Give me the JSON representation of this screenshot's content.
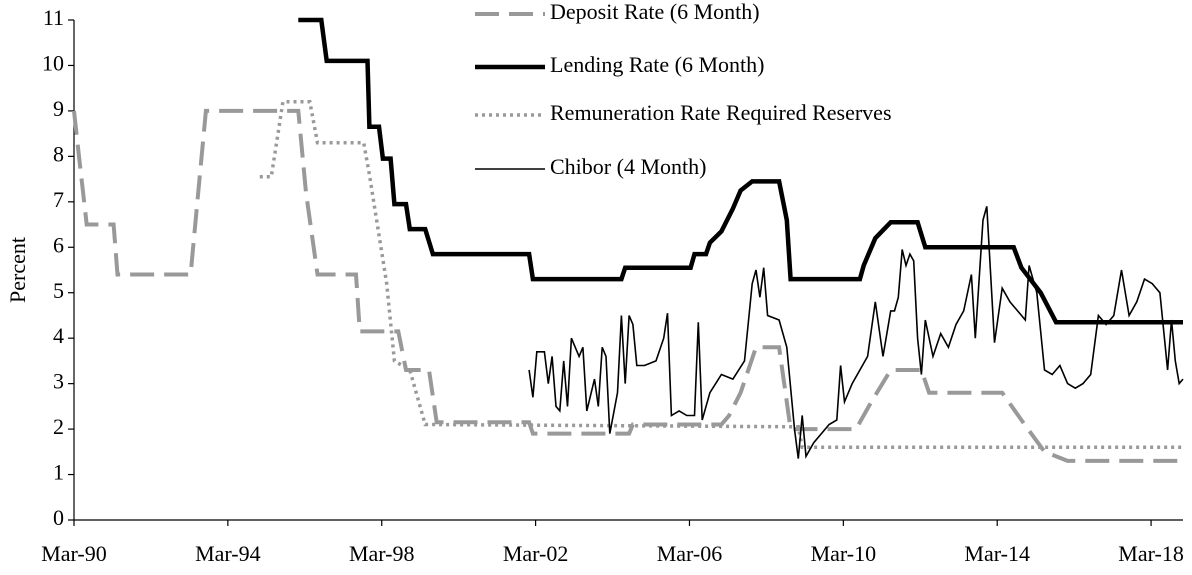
{
  "chart_data": {
    "type": "line",
    "ylabel": "Percent",
    "xlim": [
      1990.17,
      2019.0
    ],
    "xticks": [
      {
        "value": 1990.17,
        "label": "Mar-90"
      },
      {
        "value": 1994.17,
        "label": "Mar-94"
      },
      {
        "value": 1998.17,
        "label": "Mar-98"
      },
      {
        "value": 2002.17,
        "label": "Mar-02"
      },
      {
        "value": 2006.17,
        "label": "Mar-06"
      },
      {
        "value": 2010.17,
        "label": "Mar-10"
      },
      {
        "value": 2014.17,
        "label": "Mar-14"
      },
      {
        "value": 2018.17,
        "label": "Mar-18"
      }
    ],
    "ylim": [
      0,
      11
    ],
    "yticks": [
      0,
      1,
      2,
      3,
      4,
      5,
      6,
      7,
      8,
      9,
      10,
      11
    ],
    "grid": false,
    "legend": "top-center",
    "series": [
      {
        "name": "Deposit Rate (6 Month)",
        "color": "#999999",
        "line_style": "dashed",
        "linewidth": 4,
        "x": [
          1990.17,
          1990.3,
          1990.5,
          1991.2,
          1991.3,
          1993.2,
          1993.4,
          1993.6,
          1996.0,
          1996.2,
          1996.5,
          1997.5,
          1997.6,
          1998.6,
          1998.8,
          1999.4,
          1999.6,
          2002.0,
          2002.1,
          2004.6,
          2004.7,
          2007.0,
          2007.2,
          2007.5,
          2007.9,
          2008.5,
          2008.8,
          2010.5,
          2010.9,
          2011.4,
          2012.2,
          2012.4,
          2014.3,
          2014.8,
          2015.4,
          2016.0,
          2019.0
        ],
        "values": [
          9,
          8,
          6.5,
          6.5,
          5.4,
          5.4,
          7.2,
          9,
          9,
          7.2,
          5.4,
          5.4,
          4.15,
          4.15,
          3.3,
          3.3,
          2.15,
          2.15,
          1.9,
          1.9,
          2.1,
          2.1,
          2.3,
          2.8,
          3.8,
          3.8,
          2.0,
          2.0,
          2.6,
          3.3,
          3.3,
          2.8,
          2.8,
          2.2,
          1.5,
          1.3,
          1.3
        ]
      },
      {
        "name": "Lending Rate (6 Month)",
        "color": "#000000",
        "line_style": "solid",
        "linewidth": 4.5,
        "x": [
          1996.0,
          1996.6,
          1996.74,
          1997.8,
          1997.85,
          1998.1,
          1998.2,
          1998.4,
          1998.5,
          1998.8,
          1998.9,
          1999.3,
          1999.5,
          2002.0,
          2002.1,
          2004.4,
          2004.5,
          2006.2,
          2006.3,
          2006.6,
          2006.7,
          2007.0,
          2007.3,
          2007.5,
          2007.8,
          2008.5,
          2008.7,
          2008.8,
          2010.6,
          2010.7,
          2011.0,
          2011.4,
          2012.1,
          2012.3,
          2014.6,
          2014.8,
          2015.3,
          2015.7,
          2019.0
        ],
        "values": [
          11,
          11,
          10.1,
          10.1,
          8.65,
          8.65,
          7.95,
          7.95,
          6.95,
          6.95,
          6.4,
          6.4,
          5.85,
          5.85,
          5.3,
          5.3,
          5.55,
          5.55,
          5.85,
          5.85,
          6.1,
          6.35,
          6.85,
          7.25,
          7.45,
          7.45,
          6.6,
          5.3,
          5.3,
          5.6,
          6.2,
          6.55,
          6.55,
          6.0,
          6.0,
          5.55,
          5.0,
          4.35,
          4.35
        ]
      },
      {
        "name": "Remuneration Rate Required Reserves",
        "color": "#999999",
        "line_style": "dotted",
        "linewidth": 3.5,
        "x": [
          1995.0,
          1995.3,
          1995.6,
          1996.3,
          1996.5,
          1997.7,
          1997.85,
          1998.3,
          1998.5,
          1998.9,
          1999.3,
          2009.0,
          2009.1,
          2019.0
        ],
        "values": [
          7.55,
          7.55,
          9.2,
          9.2,
          8.3,
          8.3,
          7.6,
          5.2,
          3.5,
          3.3,
          2.1,
          2.05,
          1.6,
          1.6
        ]
      },
      {
        "name": "Chibor (4 Month)",
        "color": "#000000",
        "line_style": "solid",
        "linewidth": 1.6,
        "x": [
          2002.0,
          2002.1,
          2002.2,
          2002.4,
          2002.5,
          2002.6,
          2002.7,
          2002.8,
          2002.9,
          2003.0,
          2003.1,
          2003.3,
          2003.4,
          2003.5,
          2003.7,
          2003.8,
          2003.9,
          2004.0,
          2004.1,
          2004.3,
          2004.4,
          2004.5,
          2004.6,
          2004.7,
          2004.8,
          2005.0,
          2005.3,
          2005.5,
          2005.6,
          2005.7,
          2005.9,
          2006.1,
          2006.3,
          2006.4,
          2006.5,
          2006.7,
          2007.0,
          2007.3,
          2007.6,
          2007.8,
          2007.9,
          2008.0,
          2008.1,
          2008.2,
          2008.5,
          2008.7,
          2008.9,
          2009.0,
          2009.1,
          2009.2,
          2009.4,
          2009.6,
          2009.8,
          2010.0,
          2010.1,
          2010.2,
          2010.4,
          2010.6,
          2010.8,
          2011.0,
          2011.2,
          2011.4,
          2011.5,
          2011.6,
          2011.7,
          2011.8,
          2011.9,
          2012.0,
          2012.1,
          2012.2,
          2012.3,
          2012.5,
          2012.7,
          2012.9,
          2013.1,
          2013.3,
          2013.5,
          2013.6,
          2013.8,
          2013.9,
          2014.1,
          2014.3,
          2014.5,
          2014.7,
          2014.9,
          2015.0,
          2015.2,
          2015.4,
          2015.6,
          2015.8,
          2016.0,
          2016.2,
          2016.4,
          2016.6,
          2016.8,
          2017.0,
          2017.2,
          2017.4,
          2017.6,
          2017.8,
          2018.0,
          2018.2,
          2018.4,
          2018.6,
          2018.7,
          2018.8,
          2018.9,
          2019.0
        ],
        "values": [
          3.3,
          2.7,
          3.7,
          3.7,
          3.0,
          3.6,
          2.5,
          2.4,
          3.5,
          2.5,
          4.0,
          3.6,
          3.8,
          2.4,
          3.1,
          2.5,
          3.8,
          3.6,
          1.9,
          2.8,
          4.5,
          3.0,
          4.5,
          4.3,
          3.4,
          3.4,
          3.5,
          4.0,
          4.55,
          2.3,
          2.4,
          2.3,
          2.3,
          4.35,
          2.2,
          2.8,
          3.2,
          3.1,
          3.5,
          5.2,
          5.5,
          4.9,
          5.55,
          4.5,
          4.4,
          3.8,
          2.0,
          1.35,
          2.3,
          1.4,
          1.7,
          1.9,
          2.1,
          2.2,
          3.4,
          2.6,
          3.0,
          3.3,
          3.6,
          4.8,
          3.6,
          4.6,
          4.6,
          4.9,
          5.95,
          5.6,
          5.85,
          5.7,
          4.0,
          3.2,
          4.4,
          3.6,
          4.1,
          3.8,
          4.3,
          4.6,
          5.4,
          4.0,
          6.6,
          6.9,
          3.9,
          5.1,
          4.8,
          4.6,
          4.4,
          5.6,
          5.0,
          3.3,
          3.2,
          3.4,
          3.0,
          2.9,
          3.0,
          3.2,
          4.5,
          4.3,
          4.5,
          5.5,
          4.5,
          4.8,
          5.3,
          5.2,
          5.0,
          3.3,
          4.4,
          3.5,
          3.0,
          3.1
        ]
      }
    ]
  }
}
